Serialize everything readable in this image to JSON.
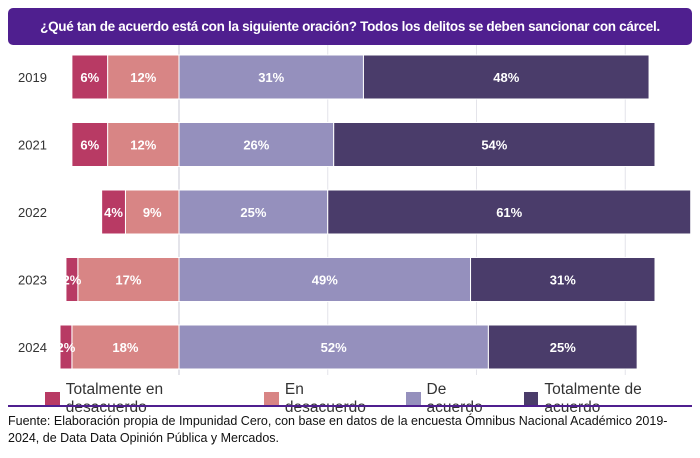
{
  "chart_data": {
    "type": "bar",
    "orientation": "horizontal",
    "stacked": "diverging",
    "title": "¿Qué tan de acuerdo está con la siguiente oración? Todos los delitos se deben sancionar con cárcel.",
    "categories": [
      "2019",
      "2021",
      "2022",
      "2023",
      "2024"
    ],
    "series": [
      {
        "name": "Totalmente en desacuerdo",
        "side": "negative",
        "color": "#b83a64",
        "values": [
          6,
          6,
          4,
          2,
          2
        ]
      },
      {
        "name": "En desacuerdo",
        "side": "negative",
        "color": "#d88585",
        "values": [
          12,
          12,
          9,
          17,
          18
        ]
      },
      {
        "name": "De acuerdo",
        "side": "positive",
        "color": "#9590bd",
        "values": [
          31,
          26,
          25,
          49,
          52
        ]
      },
      {
        "name": "Totalmente de acuerdo",
        "side": "positive",
        "color": "#4a3c6a",
        "values": [
          48,
          54,
          61,
          31,
          25
        ]
      }
    ],
    "value_format": "%",
    "grid": true,
    "legend": "bottom"
  },
  "source": "Fuente: Elaboración propia de Impunidad Cero, con base en datos de la encuesta Ómnibus Nacional Académico 2019-2024, de Data Data Opinión Pública y Mercados.",
  "colors": {
    "header": "#4f1f8f"
  }
}
